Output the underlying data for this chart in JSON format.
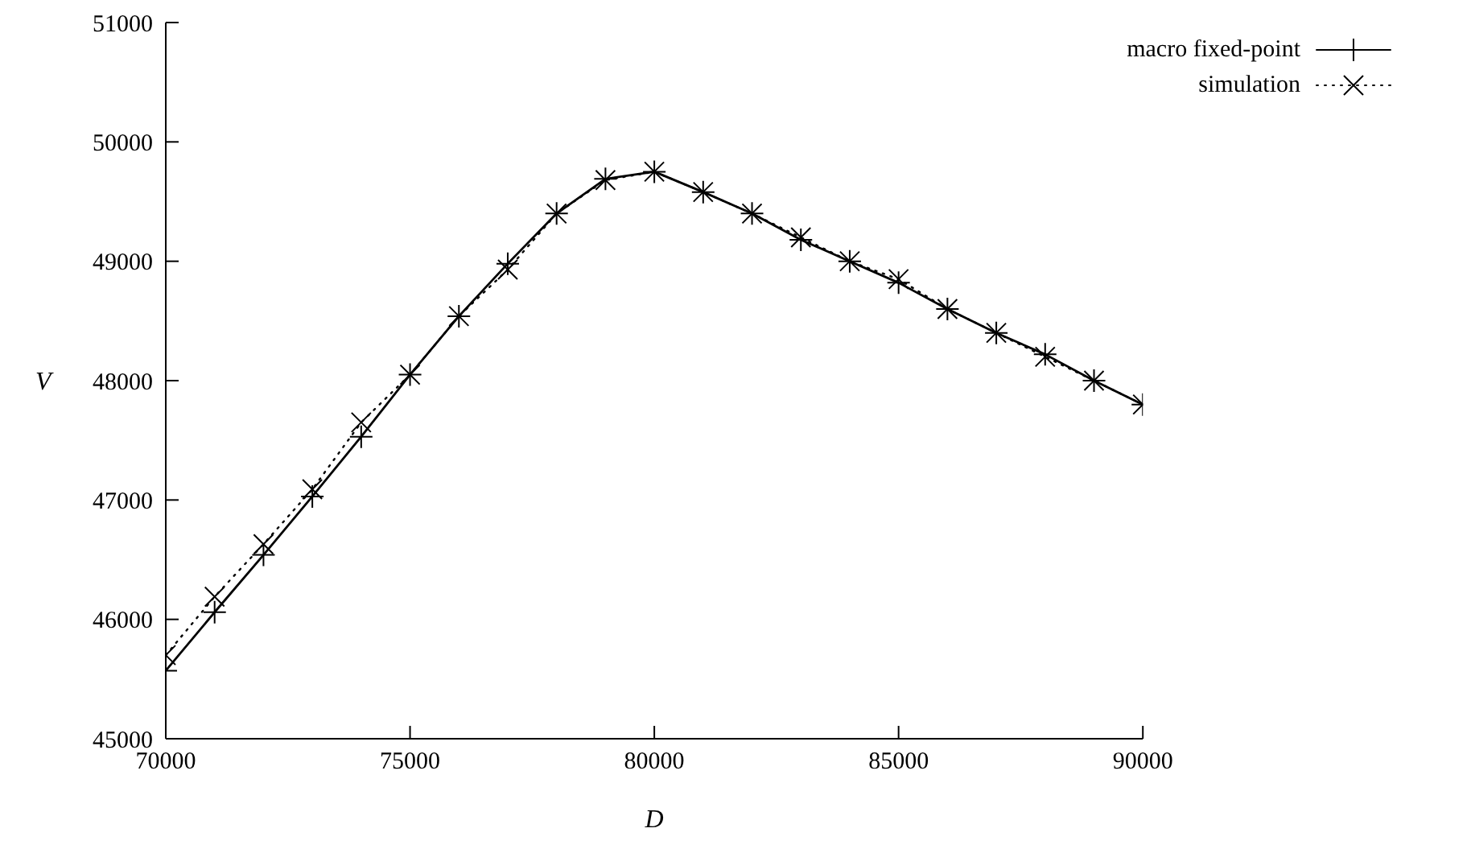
{
  "chart_data": {
    "type": "line",
    "xlabel": "D",
    "ylabel": "V",
    "x": [
      70000,
      71000,
      72000,
      73000,
      74000,
      75000,
      76000,
      77000,
      78000,
      79000,
      80000,
      81000,
      82000,
      83000,
      84000,
      85000,
      86000,
      87000,
      88000,
      89000,
      90000
    ],
    "series": [
      {
        "name": "macro fixed-point",
        "color": "#000000",
        "marker": "cross",
        "line_style": "solid",
        "values": [
          45570,
          46060,
          46540,
          47030,
          47530,
          48050,
          48540,
          48980,
          49400,
          49690,
          49750,
          49580,
          49400,
          49180,
          49000,
          48820,
          48600,
          48400,
          48220,
          48000,
          47800
        ]
      },
      {
        "name": "simulation",
        "color": "#000000",
        "marker": "x",
        "line_style": "dotted",
        "values": [
          45700,
          46190,
          46630,
          47090,
          47650,
          48050,
          48540,
          48930,
          49400,
          49680,
          49750,
          49580,
          49400,
          49200,
          49000,
          48850,
          48600,
          48400,
          48200,
          48000,
          47800
        ]
      }
    ],
    "xlim": [
      70000,
      90000
    ],
    "xticks": [
      70000,
      75000,
      80000,
      85000,
      90000
    ],
    "ylim": [
      45000,
      51000
    ],
    "yticks": [
      45000,
      46000,
      47000,
      48000,
      49000,
      50000,
      51000
    ],
    "grid": false,
    "legend": "top right"
  }
}
